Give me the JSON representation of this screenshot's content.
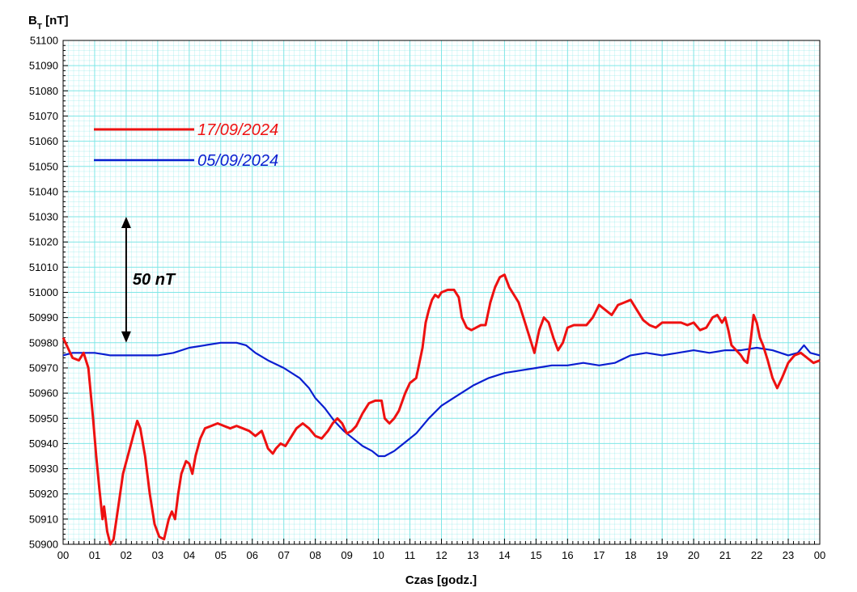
{
  "chart_data": {
    "type": "line",
    "ylabel_main": "B",
    "ylabel_sub": "T",
    "ylabel_unit": " [nT]",
    "xlabel": "Czas [godz.]",
    "ylim": [
      50900,
      51100
    ],
    "ystep": 10,
    "x_ticks": [
      "00",
      "01",
      "02",
      "03",
      "04",
      "05",
      "06",
      "07",
      "08",
      "09",
      "10",
      "11",
      "12",
      "13",
      "14",
      "15",
      "16",
      "17",
      "18",
      "19",
      "20",
      "21",
      "22",
      "23",
      "00"
    ],
    "xlim": [
      0,
      24
    ],
    "grid": true,
    "grid_color": "#7fe6e6",
    "legend_placement": "top-left",
    "annotation": {
      "text": "50 nT",
      "arrow_from": 50980,
      "arrow_to": 51030,
      "x": 2.0
    },
    "series": [
      {
        "name": "17/09/2024",
        "color": "#ee1111",
        "x": [
          0,
          0.15,
          0.3,
          0.5,
          0.65,
          0.8,
          0.95,
          1.05,
          1.15,
          1.25,
          1.3,
          1.4,
          1.5,
          1.6,
          1.75,
          1.9,
          2.05,
          2.2,
          2.35,
          2.45,
          2.6,
          2.75,
          2.9,
          3.05,
          3.2,
          3.35,
          3.45,
          3.55,
          3.65,
          3.75,
          3.9,
          4.0,
          4.1,
          4.2,
          4.35,
          4.5,
          4.7,
          4.9,
          5.1,
          5.3,
          5.5,
          5.7,
          5.9,
          6.1,
          6.3,
          6.5,
          6.65,
          6.75,
          6.9,
          7.05,
          7.2,
          7.4,
          7.6,
          7.8,
          8.0,
          8.2,
          8.4,
          8.55,
          8.7,
          8.85,
          9.0,
          9.15,
          9.3,
          9.5,
          9.7,
          9.9,
          10.1,
          10.2,
          10.35,
          10.5,
          10.65,
          10.85,
          11.0,
          11.2,
          11.4,
          11.5,
          11.6,
          11.7,
          11.8,
          11.9,
          12.0,
          12.2,
          12.4,
          12.55,
          12.65,
          12.8,
          12.95,
          13.1,
          13.25,
          13.4,
          13.55,
          13.7,
          13.85,
          14.0,
          14.15,
          14.3,
          14.45,
          14.6,
          14.8,
          14.95,
          15.1,
          15.25,
          15.4,
          15.55,
          15.7,
          15.85,
          16.0,
          16.2,
          16.4,
          16.6,
          16.8,
          17.0,
          17.2,
          17.4,
          17.6,
          17.8,
          18.0,
          18.2,
          18.4,
          18.6,
          18.8,
          19.0,
          19.2,
          19.4,
          19.6,
          19.8,
          20.0,
          20.2,
          20.4,
          20.6,
          20.75,
          20.9,
          21.0,
          21.1,
          21.2,
          21.35,
          21.5,
          21.6,
          21.7,
          21.8,
          21.9,
          22.0,
          22.1,
          22.2,
          22.35,
          22.5,
          22.65,
          22.8,
          23.0,
          23.2,
          23.4,
          23.6,
          23.8,
          24.0
        ],
        "y": [
          50982,
          50978,
          50974,
          50973,
          50976,
          50970,
          50950,
          50935,
          50922,
          50910,
          50915,
          50905,
          50900,
          50902,
          50915,
          50928,
          50935,
          50942,
          50949,
          50946,
          50935,
          50920,
          50908,
          50903,
          50902,
          50910,
          50913,
          50910,
          50920,
          50928,
          50933,
          50932,
          50928,
          50935,
          50942,
          50946,
          50947,
          50948,
          50947,
          50946,
          50947,
          50946,
          50945,
          50943,
          50945,
          50938,
          50936,
          50938,
          50940,
          50939,
          50942,
          50946,
          50948,
          50946,
          50943,
          50942,
          50945,
          50948,
          50950,
          50948,
          50944,
          50945,
          50947,
          50952,
          50956,
          50957,
          50957,
          50950,
          50948,
          50950,
          50953,
          50960,
          50964,
          50966,
          50978,
          50988,
          50993,
          50997,
          50999,
          50998,
          51000,
          51001,
          51001,
          50998,
          50990,
          50986,
          50985,
          50986,
          50987,
          50987,
          50996,
          51002,
          51006,
          51007,
          51002,
          50999,
          50996,
          50990,
          50982,
          50976,
          50985,
          50990,
          50988,
          50982,
          50977,
          50980,
          50986,
          50987,
          50987,
          50987,
          50990,
          50995,
          50993,
          50991,
          50995,
          50996,
          50997,
          50993,
          50989,
          50987,
          50986,
          50988,
          50988,
          50988,
          50988,
          50987,
          50988,
          50985,
          50986,
          50990,
          50991,
          50988,
          50990,
          50985,
          50979,
          50977,
          50975,
          50973,
          50972,
          50980,
          50991,
          50988,
          50982,
          50979,
          50973,
          50966,
          50962,
          50966,
          50972,
          50975,
          50976,
          50974,
          50972,
          50973
        ]
      },
      {
        "name": "05/09/2024",
        "color": "#0a1ed0",
        "x": [
          0,
          0.3,
          0.6,
          1.0,
          1.5,
          2.0,
          2.5,
          3.0,
          3.5,
          4.0,
          4.5,
          5.0,
          5.5,
          5.8,
          6.1,
          6.5,
          7.0,
          7.5,
          7.8,
          8.0,
          8.3,
          8.6,
          8.9,
          9.2,
          9.5,
          9.8,
          10.0,
          10.2,
          10.5,
          10.8,
          11.2,
          11.6,
          12.0,
          12.5,
          13.0,
          13.5,
          14.0,
          14.5,
          15.0,
          15.5,
          16.0,
          16.5,
          17.0,
          17.5,
          18.0,
          18.5,
          19.0,
          19.5,
          20.0,
          20.5,
          21.0,
          21.5,
          22.0,
          22.5,
          23.0,
          23.3,
          23.5,
          23.7,
          24.0
        ],
        "y": [
          50975,
          50976,
          50976,
          50976,
          50975,
          50975,
          50975,
          50975,
          50976,
          50978,
          50979,
          50980,
          50980,
          50979,
          50976,
          50973,
          50970,
          50966,
          50962,
          50958,
          50954,
          50949,
          50945,
          50942,
          50939,
          50937,
          50935,
          50935,
          50937,
          50940,
          50944,
          50950,
          50955,
          50959,
          50963,
          50966,
          50968,
          50969,
          50970,
          50971,
          50971,
          50972,
          50971,
          50972,
          50975,
          50976,
          50975,
          50976,
          50977,
          50976,
          50977,
          50977,
          50978,
          50977,
          50975,
          50976,
          50979,
          50976,
          50975
        ]
      }
    ]
  }
}
